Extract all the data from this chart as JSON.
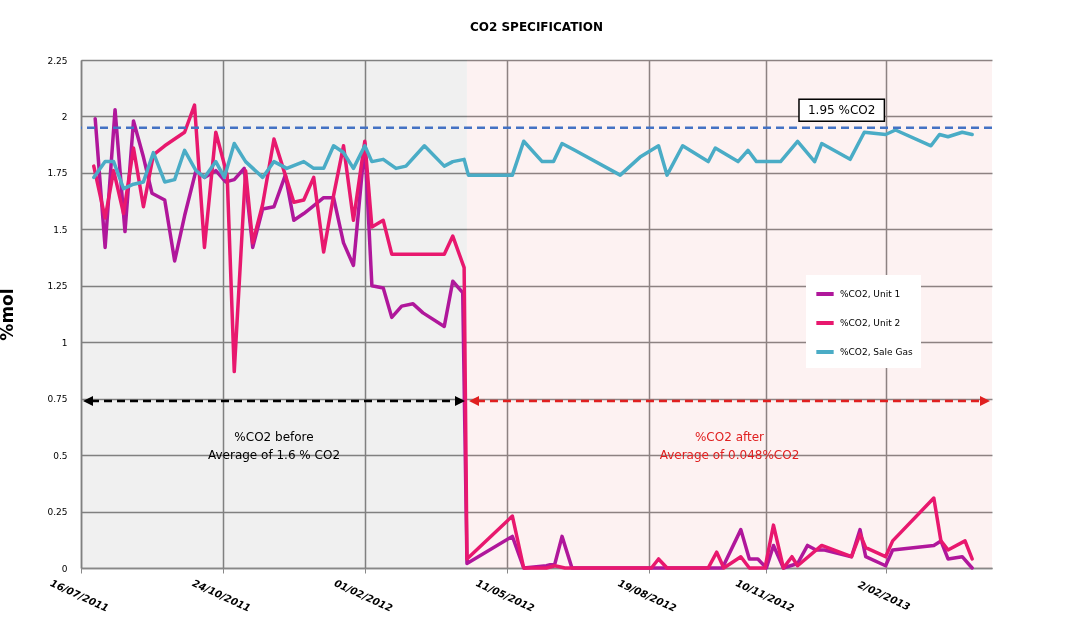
{
  "chart_data": {
    "type": "line",
    "title": "CO2 SPECIFICATION",
    "ylabel": "%mol",
    "xlim": [
      "2011-07-16",
      "2013-04-18"
    ],
    "xticks": [
      {
        "value": "2011-07-16",
        "label": "16/07/2011"
      },
      {
        "value": "2011-10-24",
        "label": "24/10/2011"
      },
      {
        "value": "2012-02-01",
        "label": "01/02/2012"
      },
      {
        "value": "2012-05-11",
        "label": "11/05/2012"
      },
      {
        "value": "2012-08-19",
        "label": "19/08/2012"
      },
      {
        "value": "2012-11-10",
        "label": "10/11/2012"
      },
      {
        "value": "2013-02-02",
        "label": "2/02/2013"
      }
    ],
    "ylim": [
      0,
      2.25
    ],
    "yticks": [
      0,
      0.25,
      0.5,
      0.75,
      1,
      1.25,
      1.5,
      1.75,
      2,
      2.25
    ],
    "grid": true,
    "legend": "right",
    "series": [
      {
        "name": "%CO2, Unit 1",
        "color": "#b0179b",
        "x": [
          "2011-07-26",
          "2011-08-02",
          "2011-08-09",
          "2011-08-16",
          "2011-08-22",
          "2011-08-29",
          "2011-09-04",
          "2011-09-13",
          "2011-09-20",
          "2011-09-27",
          "2011-10-05",
          "2011-10-11",
          "2011-10-19",
          "2011-10-26",
          "2011-11-01",
          "2011-11-08",
          "2011-11-14",
          "2011-11-21",
          "2011-11-29",
          "2011-12-07",
          "2011-12-13",
          "2011-12-20",
          "2011-12-26",
          "2012-01-03",
          "2012-01-10",
          "2012-01-17",
          "2012-01-24",
          "2012-02-01",
          "2012-02-06",
          "2012-02-14",
          "2012-02-20",
          "2012-02-27",
          "2012-03-06",
          "2012-03-13",
          "2012-03-28",
          "2012-04-03",
          "2012-04-10",
          "2012-04-13",
          "2012-05-15",
          "2012-05-23",
          "2012-06-08",
          "2012-06-14",
          "2012-06-19",
          "2012-06-26",
          "2012-10-10",
          "2012-10-23",
          "2012-10-29",
          "2012-11-04",
          "2012-11-10",
          "2012-11-15",
          "2012-11-22",
          "2012-12-02",
          "2012-12-09",
          "2012-12-15",
          "2012-12-21",
          "2013-01-09",
          "2013-01-15",
          "2013-01-19",
          "2013-02-02",
          "2013-02-07",
          "2013-03-08",
          "2013-03-13",
          "2013-03-18",
          "2013-03-28",
          "2013-04-04"
        ],
        "values": [
          1.99,
          1.42,
          2.03,
          1.49,
          1.98,
          1.82,
          1.66,
          1.63,
          1.36,
          1.56,
          1.76,
          1.73,
          1.76,
          1.71,
          1.72,
          1.77,
          1.42,
          1.59,
          1.6,
          1.74,
          1.54,
          1.57,
          1.6,
          1.64,
          1.64,
          1.44,
          1.34,
          1.88,
          1.25,
          1.24,
          1.11,
          1.16,
          1.17,
          1.13,
          1.07,
          1.27,
          1.22,
          0.02,
          0.14,
          0,
          0.01,
          0.02,
          0.14,
          0,
          0,
          0.17,
          0.04,
          0.04,
          0,
          0.1,
          0,
          0.02,
          0.1,
          0.08,
          0.08,
          0.05,
          0.17,
          0.05,
          0.01,
          0.08,
          0.1,
          0.12,
          0.04,
          0.05,
          0
        ]
      },
      {
        "name": "%CO2, Unit 2",
        "color": "#e8186e",
        "x": [
          "2011-07-25",
          "2011-08-02",
          "2011-08-08",
          "2011-08-15",
          "2011-08-22",
          "2011-08-29",
          "2011-09-05",
          "2011-09-13",
          "2011-09-20",
          "2011-09-27",
          "2011-10-04",
          "2011-10-11",
          "2011-10-19",
          "2011-10-27",
          "2011-11-01",
          "2011-11-09",
          "2011-11-14",
          "2011-11-21",
          "2011-11-29",
          "2011-12-07",
          "2011-12-13",
          "2011-12-20",
          "2011-12-27",
          "2012-01-03",
          "2012-01-10",
          "2012-01-17",
          "2012-01-24",
          "2012-02-01",
          "2012-02-06",
          "2012-02-14",
          "2012-02-20",
          "2012-03-28",
          "2012-04-03",
          "2012-04-11",
          "2012-04-13",
          "2012-05-15",
          "2012-05-23",
          "2012-06-08",
          "2012-06-14",
          "2012-06-21",
          "2012-08-21",
          "2012-08-26",
          "2012-09-01",
          "2012-09-30",
          "2012-10-06",
          "2012-10-11",
          "2012-10-23",
          "2012-10-29",
          "2012-11-09",
          "2012-11-15",
          "2012-11-22",
          "2012-11-28",
          "2012-12-02",
          "2012-12-19",
          "2013-01-09",
          "2013-01-15",
          "2013-01-19",
          "2013-02-02",
          "2013-02-07",
          "2013-03-08",
          "2013-03-13",
          "2013-03-18",
          "2013-03-30",
          "2013-04-04"
        ],
        "values": [
          1.78,
          1.55,
          1.76,
          1.57,
          1.86,
          1.6,
          1.83,
          1.87,
          1.9,
          1.93,
          2.05,
          1.42,
          1.93,
          1.74,
          0.87,
          1.76,
          1.44,
          1.61,
          1.9,
          1.74,
          1.62,
          1.63,
          1.73,
          1.4,
          1.65,
          1.87,
          1.54,
          1.89,
          1.51,
          1.54,
          1.39,
          1.39,
          1.47,
          1.33,
          0.04,
          0.23,
          0,
          0,
          0.01,
          0,
          0,
          0.04,
          0,
          0,
          0.07,
          0,
          0.05,
          0,
          0,
          0.19,
          0,
          0.05,
          0.01,
          0.1,
          0.05,
          0.15,
          0.09,
          0.05,
          0.12,
          0.31,
          0.12,
          0.08,
          0.12,
          0.04
        ]
      },
      {
        "name": "%CO2, Sale Gas",
        "color": "#4aacc6",
        "x": [
          "2011-07-25",
          "2011-08-02",
          "2011-08-08",
          "2011-08-15",
          "2011-08-22",
          "2011-08-29",
          "2011-09-05",
          "2011-09-13",
          "2011-09-20",
          "2011-09-27",
          "2011-10-05",
          "2011-10-11",
          "2011-10-19",
          "2011-10-25",
          "2011-11-01",
          "2011-11-09",
          "2011-11-21",
          "2011-11-29",
          "2011-12-08",
          "2011-12-20",
          "2011-12-27",
          "2012-01-03",
          "2012-01-10",
          "2012-01-17",
          "2012-01-24",
          "2012-02-01",
          "2012-02-06",
          "2012-02-14",
          "2012-02-23",
          "2012-03-01",
          "2012-03-14",
          "2012-03-28",
          "2012-04-03",
          "2012-04-11",
          "2012-04-14",
          "2012-05-15",
          "2012-05-23",
          "2012-06-05",
          "2012-06-13",
          "2012-06-19",
          "2012-06-28",
          "2012-07-30",
          "2012-08-13",
          "2012-08-26",
          "2012-09-01",
          "2012-09-12",
          "2012-09-30",
          "2012-10-05",
          "2012-10-21",
          "2012-10-28",
          "2012-11-03",
          "2012-11-20",
          "2012-12-02",
          "2012-12-14",
          "2012-12-19",
          "2013-01-08",
          "2013-01-18",
          "2013-02-02",
          "2013-02-09",
          "2013-03-06",
          "2013-03-12",
          "2013-03-18",
          "2013-03-28",
          "2013-04-04"
        ],
        "values": [
          1.73,
          1.8,
          1.8,
          1.68,
          1.7,
          1.71,
          1.84,
          1.71,
          1.72,
          1.85,
          1.76,
          1.73,
          1.8,
          1.73,
          1.88,
          1.8,
          1.73,
          1.8,
          1.77,
          1.8,
          1.77,
          1.77,
          1.87,
          1.84,
          1.77,
          1.87,
          1.8,
          1.81,
          1.77,
          1.78,
          1.87,
          1.78,
          1.8,
          1.81,
          1.74,
          1.74,
          1.89,
          1.8,
          1.8,
          1.88,
          1.85,
          1.74,
          1.82,
          1.87,
          1.74,
          1.87,
          1.8,
          1.86,
          1.8,
          1.85,
          1.8,
          1.8,
          1.89,
          1.8,
          1.88,
          1.81,
          1.93,
          1.92,
          1.94,
          1.87,
          1.92,
          1.91,
          1.93,
          1.92
        ]
      }
    ],
    "ref_lines": [
      {
        "axis": "y",
        "value": 1.95,
        "label": "1.95 %CO2",
        "color": "#4472c4",
        "line_style": "dashed"
      }
    ],
    "bands": [
      {
        "axis": "x",
        "from": "2011-07-16",
        "to": "2012-04-13",
        "label": "%CO2 before\nAverage of 1.6 % CO2",
        "color": "#000000"
      },
      {
        "axis": "x",
        "from": "2012-04-13",
        "to": "2013-04-18",
        "label": "%CO2 after\nAverage of 0.048%CO2",
        "color": "#e02020"
      }
    ]
  }
}
